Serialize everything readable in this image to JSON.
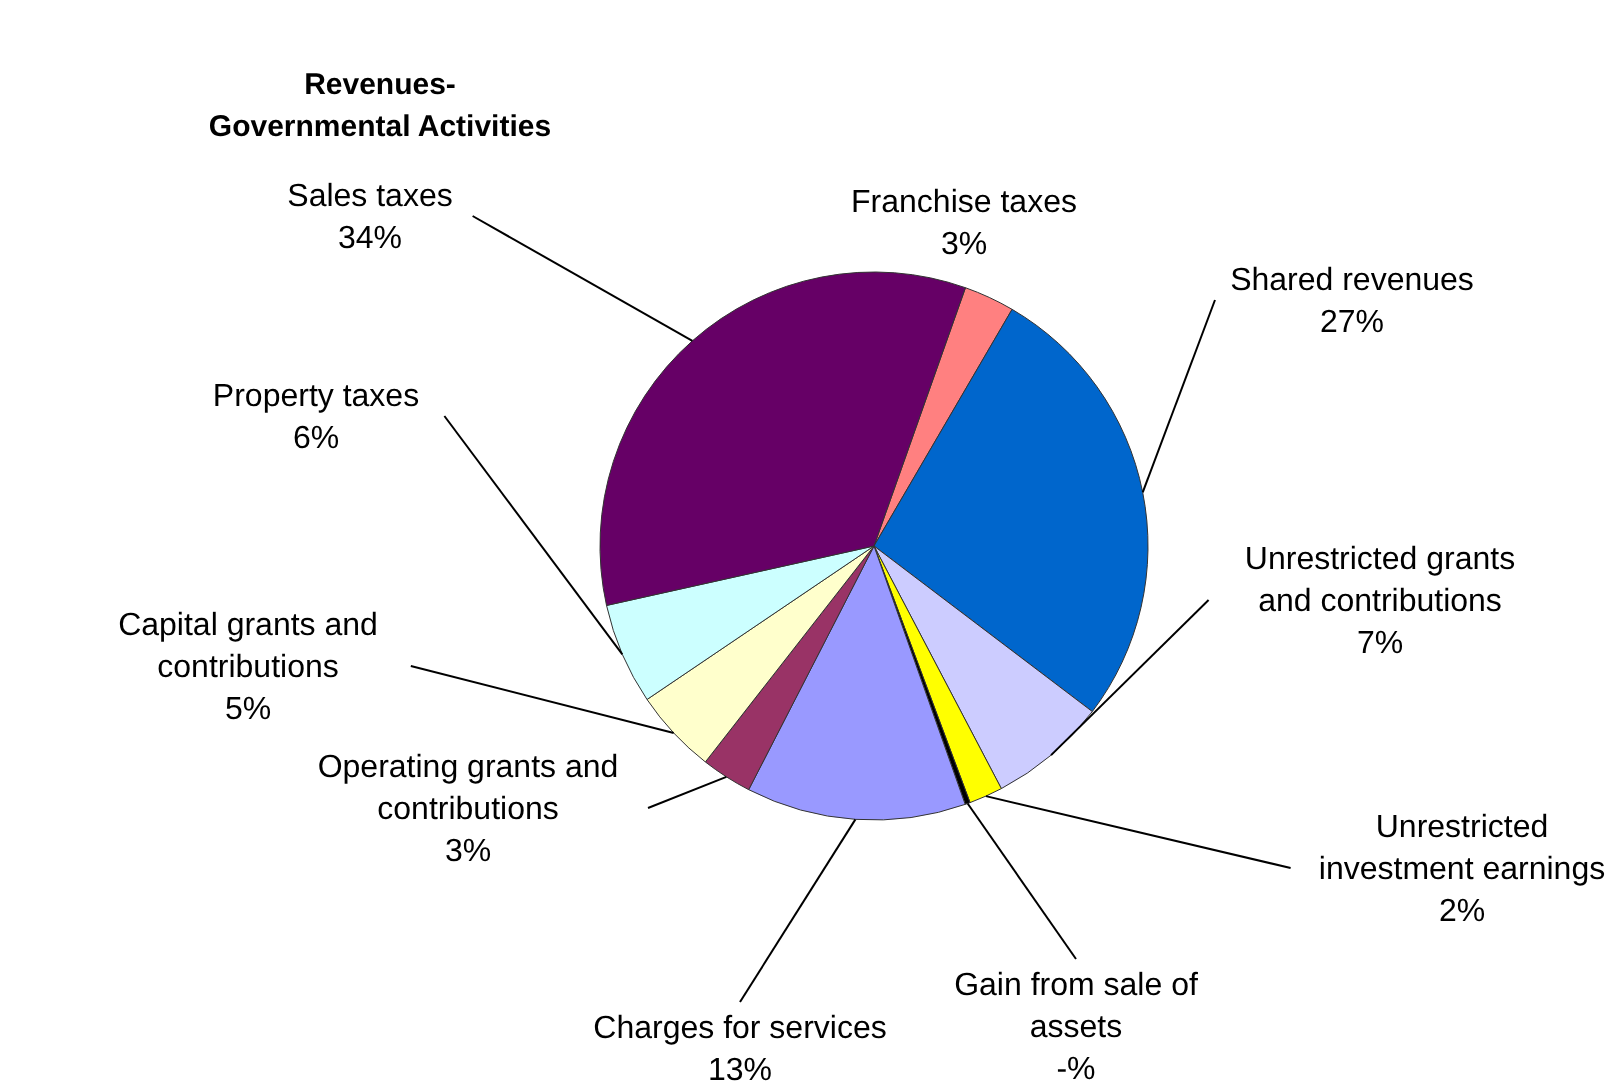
{
  "chart_data": {
    "type": "pie",
    "title": "Revenues-Governmental Activities",
    "categories": [
      "Franchise taxes",
      "Shared revenues",
      "Unrestricted grants and contributions",
      "Unrestricted investment earnings",
      "Gain from sale of assets",
      "Charges for services",
      "Operating grants and contributions",
      "Capital grants and contributions",
      "Property taxes",
      "Sales taxes"
    ],
    "values": [
      3,
      27,
      7,
      2,
      0.3,
      13,
      3,
      5,
      6,
      34
    ],
    "value_labels": [
      "3%",
      "27%",
      "7%",
      "2%",
      "-%",
      "13%",
      "3%",
      "5%",
      "6%",
      "34%"
    ],
    "colors": [
      "#ff8080",
      "#0066cc",
      "#ccccff",
      "#ffff00",
      "#000000",
      "#9999ff",
      "#993366",
      "#ffffcc",
      "#ccffff",
      "#660066"
    ]
  }
}
